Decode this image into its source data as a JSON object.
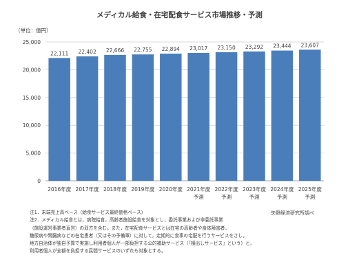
{
  "title": "メディカル給食・在宅配食サービス市場推移・予測",
  "unit_label": "（単位：億円）",
  "source": "矢野経済研究所調べ",
  "notes": [
    "注1．末端売上高ベース（給食サービス最終価格ベース）",
    "注2．メディカル給食とは，病院給食，高齢者施設給食を対象とし，委託事業および非委託事業",
    "（施設運営事業者直営）の双方を含む。また，在宅配食サービスとは在宅の高齢者や身体障害者，",
    "糖尿病や腎臓病などの在宅患者（又はその予備軍）に対して，定期的に食事の宅配を行うサービスをさし，",
    "地方自治体が独自予算で実施し利用者個人が一部負担する公的補助サービス（「横出しサービス」という）と，",
    "利用者個人が全額を負担する民間サービスのいずれも対象とする。"
  ],
  "colors": {
    "bar": "#4a7ebb",
    "grid": "#d9d9d9",
    "axis": "#a6a6a6"
  },
  "chart_data": {
    "type": "bar",
    "title": "メディカル給食・在宅配食サービス市場推移・予測",
    "ylabel": "（単位：億円）",
    "categories": [
      "2016年度",
      "2017年度",
      "2018年度",
      "2019年度",
      "2020年度",
      "2021年度\n予測",
      "2022年度\n予測",
      "2023年度\n予測",
      "2024年度\n予測",
      "2025年度\n予測"
    ],
    "values": [
      22111,
      22402,
      22666,
      22755,
      22894,
      23017,
      23150,
      23292,
      23444,
      23607
    ],
    "value_labels": [
      "22,111",
      "22,402",
      "22,666",
      "22,755",
      "22,894",
      "23,017",
      "23,150",
      "23,292",
      "23,444",
      "23,607"
    ],
    "ylim": [
      0,
      25000
    ],
    "yticks": [
      0,
      5000,
      10000,
      15000,
      20000,
      25000
    ],
    "ytick_labels": [
      "0",
      "5,000",
      "10,000",
      "15,000",
      "20,000",
      "25,000"
    ],
    "grid": true,
    "legend": "none"
  }
}
